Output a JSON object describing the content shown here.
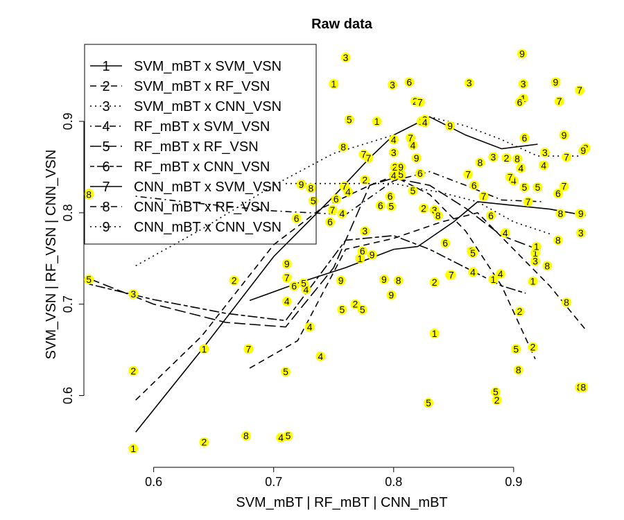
{
  "chart_data": {
    "type": "scatter",
    "title": "Raw data",
    "xlabel": "SVM_mBT | RF_mBT | CNN_mBT",
    "ylabel": "SVM_VSN | RF_VSN | CNN_VSN",
    "xlim": [
      0.543,
      0.97
    ],
    "ylim": [
      0.523,
      0.985
    ],
    "xticks": [
      0.6,
      0.7,
      0.8,
      0.9
    ],
    "yticks": [
      0.6,
      0.7,
      0.8,
      0.9
    ],
    "xtick_labels": [
      "0.6",
      "0.7",
      "0.8",
      "0.9"
    ],
    "ytick_labels": [
      "0.6",
      "0.7",
      "0.8",
      "0.9"
    ],
    "marker_color": "#ffff00",
    "line_color": "#000000",
    "legend_position": "top-left",
    "series": [
      {
        "name": "SVM_mBT x SVM_VSN",
        "marker": "1",
        "dash": "solid",
        "points": [
          [
            0.583,
            0.542
          ],
          [
            0.642,
            0.651
          ],
          [
            0.75,
            0.941
          ],
          [
            0.772,
            0.75
          ],
          [
            0.786,
            0.9
          ],
          [
            0.823,
            0.9
          ],
          [
            0.834,
            0.668
          ],
          [
            0.883,
            0.727
          ],
          [
            0.908,
            0.925
          ],
          [
            0.916,
            0.725
          ],
          [
            0.918,
            0.756
          ],
          [
            0.919,
            0.763
          ]
        ],
        "curve": [
          [
            0.585,
            0.56
          ],
          [
            0.64,
            0.65
          ],
          [
            0.7,
            0.752
          ],
          [
            0.75,
            0.818
          ],
          [
            0.78,
            0.86
          ],
          [
            0.8,
            0.885
          ],
          [
            0.83,
            0.905
          ],
          [
            0.86,
            0.885
          ],
          [
            0.89,
            0.87
          ],
          [
            0.92,
            0.875
          ]
        ]
      },
      {
        "name": "SVM_mBT x RF_VSN",
        "marker": "2",
        "dash": "dash",
        "points": [
          [
            0.583,
            0.627
          ],
          [
            0.642,
            0.549
          ],
          [
            0.667,
            0.726
          ],
          [
            0.768,
            0.7
          ],
          [
            0.776,
            0.836
          ],
          [
            0.801,
            0.85
          ],
          [
            0.818,
            0.922
          ],
          [
            0.825,
            0.805
          ],
          [
            0.834,
            0.724
          ],
          [
            0.865,
            0.758
          ],
          [
            0.886,
            0.595
          ],
          [
            0.894,
            0.86
          ],
          [
            0.905,
            0.692
          ],
          [
            0.916,
            0.653
          ]
        ],
        "curve": [
          [
            0.585,
            0.595
          ],
          [
            0.64,
            0.665
          ],
          [
            0.7,
            0.765
          ],
          [
            0.74,
            0.805
          ],
          [
            0.78,
            0.83
          ],
          [
            0.8,
            0.84
          ],
          [
            0.83,
            0.82
          ],
          [
            0.86,
            0.78
          ],
          [
            0.89,
            0.72
          ],
          [
            0.918,
            0.64
          ]
        ]
      },
      {
        "name": "SVM_mBT x CNN_VSN",
        "marker": "3",
        "dash": "dot",
        "points": [
          [
            0.583,
            0.711
          ],
          [
            0.76,
            0.97
          ],
          [
            0.776,
            0.78
          ],
          [
            0.799,
            0.94
          ],
          [
            0.8,
            0.866
          ],
          [
            0.806,
            0.841
          ],
          [
            0.826,
            0.902
          ],
          [
            0.834,
            0.803
          ],
          [
            0.863,
            0.942
          ],
          [
            0.883,
            0.861
          ],
          [
            0.908,
            0.941
          ],
          [
            0.918,
            0.747
          ],
          [
            0.926,
            0.866
          ],
          [
            0.956,
            0.778
          ]
        ],
        "curve": [
          [
            0.585,
            0.742
          ],
          [
            0.64,
            0.782
          ],
          [
            0.7,
            0.83
          ],
          [
            0.75,
            0.865
          ],
          [
            0.8,
            0.885
          ],
          [
            0.83,
            0.905
          ],
          [
            0.86,
            0.895
          ],
          [
            0.89,
            0.88
          ],
          [
            0.92,
            0.862
          ],
          [
            0.956,
            0.862
          ]
        ]
      },
      {
        "name": "RF_mBT x SVM_VSN",
        "marker": "4",
        "dash": "dashdot",
        "points": [
          [
            0.706,
            0.554
          ],
          [
            0.711,
            0.703
          ],
          [
            0.727,
            0.716
          ],
          [
            0.73,
            0.675
          ],
          [
            0.739,
            0.643
          ],
          [
            0.757,
            0.799
          ],
          [
            0.762,
            0.823
          ],
          [
            0.8,
            0.88
          ],
          [
            0.8,
            0.841
          ],
          [
            0.816,
            0.874
          ],
          [
            0.826,
            0.899
          ],
          [
            0.847,
            0.732
          ],
          [
            0.866,
            0.735
          ],
          [
            0.889,
            0.733
          ],
          [
            0.893,
            0.778
          ],
          [
            0.9,
            0.835
          ],
          [
            0.906,
            0.849
          ],
          [
            0.925,
            0.852
          ]
        ],
        "curve": [
          [
            0.585,
            0.818
          ],
          [
            0.64,
            0.81
          ],
          [
            0.7,
            0.802
          ],
          [
            0.76,
            0.798
          ],
          [
            0.8,
            0.835
          ],
          [
            0.83,
            0.845
          ],
          [
            0.86,
            0.83
          ],
          [
            0.89,
            0.814
          ],
          [
            0.925,
            0.812
          ]
        ]
      },
      {
        "name": "RF_mBT x RF_VSN",
        "marker": "5",
        "dash": "longdash",
        "points": [
          [
            0.546,
            0.727
          ],
          [
            0.71,
            0.626
          ],
          [
            0.712,
            0.556
          ],
          [
            0.725,
            0.723
          ],
          [
            0.733,
            0.813
          ],
          [
            0.757,
            0.694
          ],
          [
            0.763,
            0.902
          ],
          [
            0.774,
            0.694
          ],
          [
            0.798,
            0.807
          ],
          [
            0.806,
            0.842
          ],
          [
            0.816,
            0.824
          ],
          [
            0.829,
            0.592
          ],
          [
            0.866,
            0.756
          ],
          [
            0.885,
            0.604
          ],
          [
            0.902,
            0.651
          ],
          [
            0.909,
            0.828
          ],
          [
            0.92,
            0.828
          ]
        ],
        "curve": [
          [
            0.546,
            0.728
          ],
          [
            0.6,
            0.7
          ],
          [
            0.66,
            0.68
          ],
          [
            0.71,
            0.675
          ],
          [
            0.75,
            0.74
          ],
          [
            0.78,
            0.83
          ],
          [
            0.8,
            0.838
          ],
          [
            0.83,
            0.83
          ],
          [
            0.86,
            0.805
          ],
          [
            0.89,
            0.775
          ],
          [
            0.92,
            0.76
          ]
        ]
      },
      {
        "name": "RF_mBT x CNN_VSN",
        "marker": "6",
        "dash": "twodash",
        "points": [
          [
            0.546,
            0.821
          ],
          [
            0.717,
            0.72
          ],
          [
            0.719,
            0.794
          ],
          [
            0.747,
            0.79
          ],
          [
            0.752,
            0.815
          ],
          [
            0.774,
            0.758
          ],
          [
            0.789,
            0.808
          ],
          [
            0.797,
            0.818
          ],
          [
            0.813,
            0.943
          ],
          [
            0.822,
            0.843
          ],
          [
            0.843,
            0.767
          ],
          [
            0.867,
            0.83
          ],
          [
            0.881,
            0.797
          ],
          [
            0.905,
            0.921
          ],
          [
            0.909,
            0.882
          ],
          [
            0.937,
            0.821
          ]
        ],
        "curve": [
          [
            0.546,
            0.722
          ],
          [
            0.6,
            0.705
          ],
          [
            0.66,
            0.69
          ],
          [
            0.71,
            0.682
          ],
          [
            0.76,
            0.77
          ],
          [
            0.8,
            0.775
          ],
          [
            0.83,
            0.76
          ],
          [
            0.86,
            0.74
          ],
          [
            0.89,
            0.72
          ],
          [
            0.91,
            0.712
          ]
        ]
      },
      {
        "name": "CNN_mBT x SVM_VSN",
        "marker": "7",
        "dash": "solid",
        "points": [
          [
            0.679,
            0.651
          ],
          [
            0.711,
            0.729
          ],
          [
            0.749,
            0.803
          ],
          [
            0.759,
            0.829
          ],
          [
            0.775,
            0.864
          ],
          [
            0.779,
            0.86
          ],
          [
            0.814,
            0.882
          ],
          [
            0.822,
            0.921
          ],
          [
            0.848,
            0.732
          ],
          [
            0.862,
            0.842
          ],
          [
            0.875,
            0.818
          ],
          [
            0.897,
            0.839
          ],
          [
            0.912,
            0.812
          ],
          [
            0.938,
            0.922
          ],
          [
            0.942,
            0.829
          ],
          [
            0.944,
            0.861
          ],
          [
            0.955,
            0.934
          ],
          [
            0.955,
            0.799
          ]
        ],
        "curve": [
          [
            0.68,
            0.704
          ],
          [
            0.72,
            0.723
          ],
          [
            0.76,
            0.74
          ],
          [
            0.8,
            0.76
          ],
          [
            0.82,
            0.763
          ],
          [
            0.85,
            0.79
          ],
          [
            0.87,
            0.812
          ],
          [
            0.9,
            0.808
          ],
          [
            0.93,
            0.804
          ],
          [
            0.96,
            0.797
          ]
        ]
      },
      {
        "name": "CNN_mBT x RF_VSN",
        "marker": "8",
        "dash": "dash",
        "points": [
          [
            0.546,
            0.82
          ],
          [
            0.677,
            0.556
          ],
          [
            0.731,
            0.827
          ],
          [
            0.758,
            0.872
          ],
          [
            0.804,
            0.726
          ],
          [
            0.837,
            0.797
          ],
          [
            0.872,
            0.855
          ],
          [
            0.903,
            0.859
          ],
          [
            0.904,
            0.628
          ],
          [
            0.928,
            0.742
          ],
          [
            0.937,
            0.77
          ],
          [
            0.939,
            0.799
          ],
          [
            0.944,
            0.702
          ],
          [
            0.955,
            0.609
          ],
          [
            0.958,
            0.609
          ],
          [
            0.96,
            0.871
          ]
        ],
        "curve": [
          [
            0.68,
            0.63
          ],
          [
            0.72,
            0.66
          ],
          [
            0.76,
            0.76
          ],
          [
            0.8,
            0.772
          ],
          [
            0.84,
            0.79
          ],
          [
            0.87,
            0.8
          ],
          [
            0.9,
            0.76
          ],
          [
            0.93,
            0.72
          ],
          [
            0.96,
            0.672
          ]
        ]
      },
      {
        "name": "CNN_mBT x CNN_VSN",
        "marker": "9",
        "dash": "dot",
        "points": [
          [
            0.711,
            0.744
          ],
          [
            0.723,
            0.831
          ],
          [
            0.756,
            0.726
          ],
          [
            0.782,
            0.754
          ],
          [
            0.792,
            0.727
          ],
          [
            0.798,
            0.71
          ],
          [
            0.806,
            0.85
          ],
          [
            0.819,
            0.86
          ],
          [
            0.847,
            0.895
          ],
          [
            0.907,
            0.974
          ],
          [
            0.935,
            0.943
          ],
          [
            0.956,
            0.799
          ],
          [
            0.942,
            0.885
          ],
          [
            0.958,
            0.868
          ]
        ],
        "curve": [
          [
            0.71,
            0.832
          ],
          [
            0.76,
            0.832
          ],
          [
            0.8,
            0.832
          ],
          [
            0.84,
            0.822
          ],
          [
            0.87,
            0.812
          ],
          [
            0.9,
            0.79
          ],
          [
            0.93,
            0.777
          ]
        ]
      }
    ]
  }
}
